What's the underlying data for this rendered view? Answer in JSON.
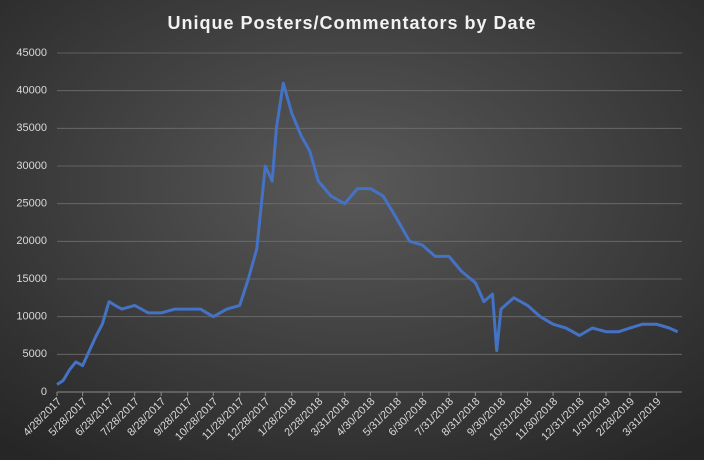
{
  "chart_data": {
    "type": "line",
    "title": "Unique Posters/Commentators by Date",
    "x": [
      "4/28/2017",
      "5/5/2017",
      "5/13/2017",
      "5/20/2017",
      "5/28/2017",
      "6/5/2017",
      "6/13/2017",
      "6/20/2017",
      "6/28/2017",
      "7/5/2017",
      "7/13/2017",
      "7/28/2017",
      "8/13/2017",
      "8/28/2017",
      "9/13/2017",
      "9/28/2017",
      "10/13/2017",
      "10/28/2017",
      "11/13/2017",
      "11/28/2017",
      "12/8/2017",
      "12/18/2017",
      "12/28/2017",
      "1/5/2018",
      "1/10/2018",
      "1/18/2018",
      "1/28/2018",
      "2/8/2018",
      "2/18/2018",
      "2/28/2018",
      "3/15/2018",
      "3/31/2018",
      "4/15/2018",
      "4/30/2018",
      "5/15/2018",
      "5/31/2018",
      "6/15/2018",
      "6/30/2018",
      "7/15/2018",
      "7/31/2018",
      "8/15/2018",
      "8/31/2018",
      "9/10/2018",
      "9/20/2018",
      "9/25/2018",
      "9/30/2018",
      "10/15/2018",
      "10/31/2018",
      "11/15/2018",
      "11/30/2018",
      "12/15/2018",
      "12/31/2018",
      "1/15/2019",
      "1/31/2019",
      "2/15/2019",
      "2/28/2019",
      "3/15/2019",
      "3/31/2019",
      "4/15/2019",
      "4/25/2019"
    ],
    "values": [
      1000,
      1500,
      3000,
      4000,
      3500,
      5500,
      7500,
      9000,
      12000,
      11500,
      11000,
      11500,
      10500,
      10500,
      11000,
      11000,
      11000,
      10000,
      11000,
      11500,
      15000,
      19000,
      30000,
      28000,
      35000,
      41000,
      37000,
      34000,
      32000,
      28000,
      26000,
      25000,
      27000,
      27000,
      26000,
      23000,
      20000,
      19500,
      18000,
      18000,
      16000,
      14500,
      12000,
      13000,
      5500,
      11000,
      12500,
      11500,
      10000,
      9000,
      8500,
      7500,
      8500,
      8000,
      8000,
      8500,
      9000,
      9000,
      8500,
      8000
    ],
    "color": "#4472c4",
    "xlim": [
      "4/28/2017",
      "4/30/2019"
    ],
    "xticks": [
      "4/28/2017",
      "5/28/2017",
      "6/28/2017",
      "7/28/2017",
      "8/28/2017",
      "9/28/2017",
      "10/28/2017",
      "11/28/2017",
      "12/28/2017",
      "1/28/2018",
      "2/28/2018",
      "3/31/2018",
      "4/30/2018",
      "5/31/2018",
      "6/30/2018",
      "7/31/2018",
      "8/31/2018",
      "9/30/2018",
      "10/31/2018",
      "11/30/2018",
      "12/31/2018",
      "1/31/2019",
      "2/28/2019",
      "3/31/2019"
    ],
    "ylim": [
      0,
      45000
    ],
    "yticks": [
      0,
      5000,
      10000,
      15000,
      20000,
      25000,
      30000,
      35000,
      40000,
      45000
    ],
    "grid": true
  }
}
